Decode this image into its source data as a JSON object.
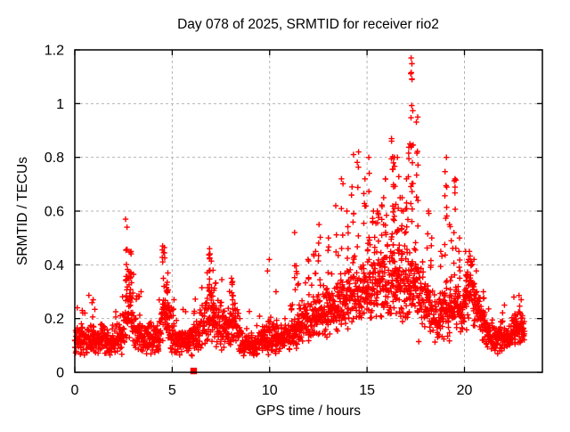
{
  "chart_data": {
    "type": "scatter",
    "title": "Day 078 of 2025, SRMTID for receiver rio2",
    "xlabel": "GPS time / hours",
    "ylabel": "SRMTID / TECUs",
    "xlim": [
      0,
      24
    ],
    "ylim": [
      0,
      1.2
    ],
    "xticks": [
      0,
      5,
      10,
      15,
      20
    ],
    "yticks": [
      0,
      0.2,
      0.4,
      0.6,
      0.8,
      1,
      1.2
    ],
    "grid": true,
    "legend": "none",
    "marker": "plus",
    "marker_color": "#ff0000",
    "grid_color": "#b4b4b4",
    "axis_color": "#000000",
    "background": "#ffffff",
    "data_time_span_hours": [
      0,
      23.1
    ],
    "max_point": {
      "x": 17.3,
      "y": 1.17
    },
    "special_points": [
      {
        "x": 6.1,
        "y": 0.005,
        "marker": "filled-square",
        "color": "#ff0000"
      }
    ],
    "baseline_envelope_comment": "control points read from plot: [hour, typical value, half-spread] of the dense noise band",
    "baseline_envelope": [
      [
        0.0,
        0.12,
        0.05
      ],
      [
        0.7,
        0.13,
        0.07
      ],
      [
        1.2,
        0.12,
        0.06
      ],
      [
        2.0,
        0.11,
        0.05
      ],
      [
        2.5,
        0.15,
        0.08
      ],
      [
        2.8,
        0.26,
        0.13
      ],
      [
        3.1,
        0.16,
        0.08
      ],
      [
        3.6,
        0.12,
        0.05
      ],
      [
        4.3,
        0.13,
        0.06
      ],
      [
        4.6,
        0.22,
        0.12
      ],
      [
        5.0,
        0.14,
        0.07
      ],
      [
        5.5,
        0.11,
        0.05
      ],
      [
        6.2,
        0.13,
        0.06
      ],
      [
        6.9,
        0.22,
        0.12
      ],
      [
        7.3,
        0.18,
        0.09
      ],
      [
        7.9,
        0.17,
        0.09
      ],
      [
        8.2,
        0.2,
        0.1
      ],
      [
        8.6,
        0.11,
        0.05
      ],
      [
        9.3,
        0.1,
        0.05
      ],
      [
        10.0,
        0.13,
        0.06
      ],
      [
        10.7,
        0.12,
        0.05
      ],
      [
        11.3,
        0.15,
        0.07
      ],
      [
        11.9,
        0.19,
        0.07
      ],
      [
        12.5,
        0.21,
        0.08
      ],
      [
        13.2,
        0.24,
        0.09
      ],
      [
        13.9,
        0.26,
        0.1
      ],
      [
        14.6,
        0.29,
        0.11
      ],
      [
        15.2,
        0.3,
        0.12
      ],
      [
        15.8,
        0.32,
        0.13
      ],
      [
        16.4,
        0.33,
        0.14
      ],
      [
        17.0,
        0.3,
        0.13
      ],
      [
        17.5,
        0.34,
        0.15
      ],
      [
        18.0,
        0.25,
        0.1
      ],
      [
        18.6,
        0.2,
        0.09
      ],
      [
        19.2,
        0.24,
        0.1
      ],
      [
        19.8,
        0.23,
        0.1
      ],
      [
        20.3,
        0.29,
        0.1
      ],
      [
        20.7,
        0.22,
        0.09
      ],
      [
        21.2,
        0.14,
        0.06
      ],
      [
        21.8,
        0.12,
        0.05
      ],
      [
        22.3,
        0.13,
        0.06
      ],
      [
        22.8,
        0.17,
        0.07
      ],
      [
        23.1,
        0.13,
        0.05
      ]
    ],
    "spikes_comment": "narrow vertical bursts read from plot: {x: hour, top: peak TECU value, n: approx point count}",
    "spikes": [
      {
        "x": 0.35,
        "top": 0.23,
        "n": 3
      },
      {
        "x": 0.95,
        "top": 0.27,
        "n": 5
      },
      {
        "x": 2.65,
        "top": 0.57,
        "n": 14
      },
      {
        "x": 2.85,
        "top": 0.45,
        "n": 10
      },
      {
        "x": 3.35,
        "top": 0.3,
        "n": 4
      },
      {
        "x": 4.55,
        "top": 0.47,
        "n": 12
      },
      {
        "x": 4.75,
        "top": 0.37,
        "n": 8
      },
      {
        "x": 5.05,
        "top": 0.27,
        "n": 3
      },
      {
        "x": 6.95,
        "top": 0.46,
        "n": 14
      },
      {
        "x": 7.15,
        "top": 0.38,
        "n": 8
      },
      {
        "x": 8.1,
        "top": 0.35,
        "n": 8
      },
      {
        "x": 9.95,
        "top": 0.42,
        "n": 3
      },
      {
        "x": 10.3,
        "top": 0.3,
        "n": 3
      },
      {
        "x": 11.35,
        "top": 0.52,
        "n": 8
      },
      {
        "x": 11.5,
        "top": 0.33,
        "n": 6
      },
      {
        "x": 12.0,
        "top": 0.42,
        "n": 5
      },
      {
        "x": 12.3,
        "top": 0.45,
        "n": 5
      },
      {
        "x": 12.55,
        "top": 0.55,
        "n": 8
      },
      {
        "x": 13.0,
        "top": 0.5,
        "n": 6
      },
      {
        "x": 13.45,
        "top": 0.62,
        "n": 8
      },
      {
        "x": 13.75,
        "top": 0.72,
        "n": 8
      },
      {
        "x": 14.0,
        "top": 0.6,
        "n": 6
      },
      {
        "x": 14.25,
        "top": 0.81,
        "n": 10
      },
      {
        "x": 14.5,
        "top": 0.82,
        "n": 6
      },
      {
        "x": 14.9,
        "top": 0.72,
        "n": 8
      },
      {
        "x": 15.1,
        "top": 0.8,
        "n": 10
      },
      {
        "x": 15.35,
        "top": 0.6,
        "n": 8
      },
      {
        "x": 15.55,
        "top": 0.6,
        "n": 6
      },
      {
        "x": 15.8,
        "top": 0.65,
        "n": 10
      },
      {
        "x": 16.0,
        "top": 0.72,
        "n": 8
      },
      {
        "x": 16.3,
        "top": 0.87,
        "n": 18
      },
      {
        "x": 16.45,
        "top": 0.8,
        "n": 10
      },
      {
        "x": 16.6,
        "top": 0.8,
        "n": 12
      },
      {
        "x": 16.75,
        "top": 0.65,
        "n": 8
      },
      {
        "x": 17.0,
        "top": 0.72,
        "n": 10
      },
      {
        "x": 17.15,
        "top": 0.85,
        "n": 8
      },
      {
        "x": 17.3,
        "top": 1.17,
        "n": 22
      },
      {
        "x": 17.55,
        "top": 0.95,
        "n": 12
      },
      {
        "x": 18.1,
        "top": 0.6,
        "n": 6
      },
      {
        "x": 18.3,
        "top": 0.5,
        "n": 5
      },
      {
        "x": 18.8,
        "top": 0.45,
        "n": 4
      },
      {
        "x": 19.05,
        "top": 0.8,
        "n": 12
      },
      {
        "x": 19.3,
        "top": 0.55,
        "n": 6
      },
      {
        "x": 19.5,
        "top": 0.72,
        "n": 10
      },
      {
        "x": 19.7,
        "top": 0.5,
        "n": 5
      },
      {
        "x": 20.1,
        "top": 0.45,
        "n": 8
      },
      {
        "x": 20.3,
        "top": 0.45,
        "n": 5
      },
      {
        "x": 20.5,
        "top": 0.42,
        "n": 6
      },
      {
        "x": 21.0,
        "top": 0.3,
        "n": 3
      },
      {
        "x": 22.0,
        "top": 0.25,
        "n": 3
      },
      {
        "x": 22.55,
        "top": 0.28,
        "n": 4
      },
      {
        "x": 22.9,
        "top": 0.27,
        "n": 3
      }
    ]
  }
}
